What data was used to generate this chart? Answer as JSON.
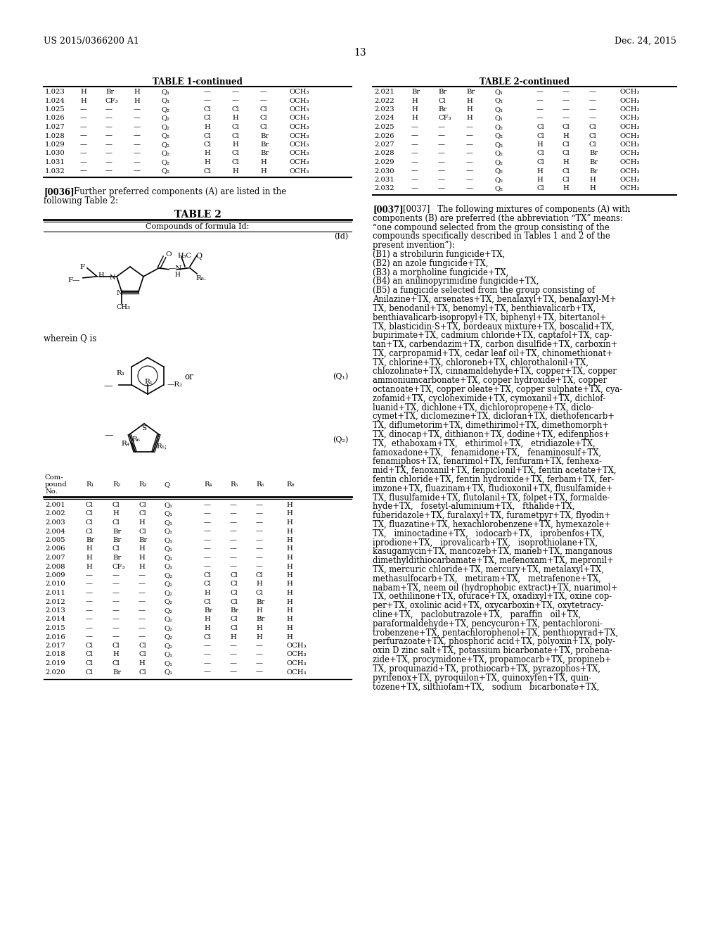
{
  "bg_color": "#ffffff",
  "header_left": "US 2015/0366200 A1",
  "header_right": "Dec. 24, 2015",
  "page_number": "13",
  "table1_title": "TABLE 1-continued",
  "table2_title": "TABLE 2-continued",
  "table1_continued_rows": [
    [
      "1.023",
      "H",
      "Br",
      "H",
      "Q₁",
      "—",
      "—",
      "—",
      "OCH₃"
    ],
    [
      "1.024",
      "H",
      "CF₃",
      "H",
      "Q₁",
      "—",
      "—",
      "—",
      "OCH₃"
    ],
    [
      "1.025",
      "—",
      "—",
      "—",
      "Q₂",
      "Cl",
      "Cl",
      "Cl",
      "OCH₃"
    ],
    [
      "1.026",
      "—",
      "—",
      "—",
      "Q₂",
      "Cl",
      "H",
      "Cl",
      "OCH₃"
    ],
    [
      "1.027",
      "—",
      "—",
      "—",
      "Q₂",
      "H",
      "Cl",
      "Cl",
      "OCH₃"
    ],
    [
      "1.028",
      "—",
      "—",
      "—",
      "Q₂",
      "Cl",
      "Cl",
      "Br",
      "OCH₃"
    ],
    [
      "1.029",
      "—",
      "—",
      "—",
      "Q₂",
      "Cl",
      "H",
      "Br",
      "OCH₃"
    ],
    [
      "1.030",
      "—",
      "—",
      "—",
      "Q₂",
      "H",
      "Cl",
      "Br",
      "OCH₃"
    ],
    [
      "1.031",
      "—",
      "—",
      "—",
      "Q₂",
      "H",
      "Cl",
      "H",
      "OCH₃"
    ],
    [
      "1.032",
      "—",
      "—",
      "—",
      "Q₂",
      "Cl",
      "H",
      "H",
      "OCH₃"
    ]
  ],
  "table2_continued_rows": [
    [
      "2.021",
      "Br",
      "Br",
      "Br",
      "Q₁",
      "—",
      "—",
      "—",
      "OCH₃"
    ],
    [
      "2.022",
      "H",
      "Cl",
      "H",
      "Q₁",
      "—",
      "—",
      "—",
      "OCH₃"
    ],
    [
      "2.023",
      "H",
      "Br",
      "H",
      "Q₁",
      "—",
      "—",
      "—",
      "OCH₃"
    ],
    [
      "2.024",
      "H",
      "CF₃",
      "H",
      "Q₁",
      "—",
      "—",
      "—",
      "OCH₃"
    ],
    [
      "2.025",
      "—",
      "—",
      "—",
      "Q₂",
      "Cl",
      "Cl",
      "Cl",
      "OCH₃"
    ],
    [
      "2.026",
      "—",
      "—",
      "—",
      "Q₂",
      "Cl",
      "H",
      "Cl",
      "OCH₃"
    ],
    [
      "2.027",
      "—",
      "—",
      "—",
      "Q₂",
      "H",
      "Cl",
      "Cl",
      "OCH₃"
    ],
    [
      "2.028",
      "—",
      "—",
      "—",
      "Q₂",
      "Cl",
      "Cl",
      "Br",
      "OCH₃"
    ],
    [
      "2.029",
      "—",
      "—",
      "—",
      "Q₂",
      "Cl",
      "H",
      "Br",
      "OCH₃"
    ],
    [
      "2.030",
      "—",
      "—",
      "—",
      "Q₂",
      "H",
      "Cl",
      "Br",
      "OCH₃"
    ],
    [
      "2.031",
      "—",
      "—",
      "—",
      "Q₂",
      "H",
      "Cl",
      "H",
      "OCH₃"
    ],
    [
      "2.032",
      "—",
      "—",
      "—",
      "Q₂",
      "Cl",
      "H",
      "H",
      "OCH₃"
    ]
  ],
  "table2_rows": [
    [
      "2.001",
      "Cl",
      "Cl",
      "Cl",
      "Q₁",
      "—",
      "—",
      "—",
      "H"
    ],
    [
      "2.002",
      "Cl",
      "H",
      "Cl",
      "Q₁",
      "—",
      "—",
      "—",
      "H"
    ],
    [
      "2.003",
      "Cl",
      "Cl",
      "H",
      "Q₁",
      "—",
      "—",
      "—",
      "H"
    ],
    [
      "2.004",
      "Cl",
      "Br",
      "Cl",
      "Q₁",
      "—",
      "—",
      "—",
      "H"
    ],
    [
      "2.005",
      "Br",
      "Br",
      "Br",
      "Q₁",
      "—",
      "—",
      "—",
      "H"
    ],
    [
      "2.006",
      "H",
      "Cl",
      "H",
      "Q₁",
      "—",
      "—",
      "—",
      "H"
    ],
    [
      "2.007",
      "H",
      "Br",
      "H",
      "Q₁",
      "—",
      "—",
      "—",
      "H"
    ],
    [
      "2.008",
      "H",
      "CF₃",
      "H",
      "Q₁",
      "—",
      "—",
      "—",
      "H"
    ],
    [
      "2.009",
      "—",
      "—",
      "—",
      "Q₂",
      "Cl",
      "Cl",
      "Cl",
      "H"
    ],
    [
      "2.010",
      "—",
      "—",
      "—",
      "Q₂",
      "Cl",
      "Cl",
      "H",
      "H"
    ],
    [
      "2.011",
      "—",
      "—",
      "—",
      "Q₂",
      "H",
      "Cl",
      "Cl",
      "H"
    ],
    [
      "2.012",
      "—",
      "—",
      "—",
      "Q₂",
      "Cl",
      "Cl",
      "Br",
      "H"
    ],
    [
      "2.013",
      "—",
      "—",
      "—",
      "Q₂",
      "Br",
      "Br",
      "H",
      "H"
    ],
    [
      "2.014",
      "—",
      "—",
      "—",
      "Q₂",
      "H",
      "Cl",
      "Br",
      "H"
    ],
    [
      "2.015",
      "—",
      "—",
      "—",
      "Q₂",
      "H",
      "Cl",
      "H",
      "H"
    ],
    [
      "2.016",
      "—",
      "—",
      "—",
      "Q₂",
      "Cl",
      "H",
      "H",
      "H"
    ],
    [
      "2.017",
      "Cl",
      "Cl",
      "Cl",
      "Q₂",
      "—",
      "—",
      "—",
      "OCH₃"
    ],
    [
      "2.018",
      "Cl",
      "H",
      "Cl",
      "Q₁",
      "—",
      "—",
      "—",
      "OCH₃"
    ],
    [
      "2.019",
      "Cl",
      "Cl",
      "H",
      "Q₁",
      "—",
      "—",
      "—",
      "OCH₃"
    ],
    [
      "2.020",
      "Cl",
      "Br",
      "Cl",
      "Q₁",
      "—",
      "—",
      "—",
      "OCH₃"
    ]
  ],
  "right_col_lines": [
    "[0037]   The following mixtures of components (A) with",
    "components (B) are preferred (the abbreviation “TX” means:",
    "“one compound selected from the group consisting of the",
    "compounds specifically described in Tables 1 and 2 of the",
    "present invention”):",
    "(B1) a strobilurin fungicide+TX,",
    "(B2) an azole fungicide+TX,",
    "(B3) a morpholine fungicide+TX,",
    "(B4) an anilinopyrimidine fungicide+TX,",
    "(B5) a fungicide selected from the group consisting of",
    "Anilazine+TX, arsenates+TX, benalaxyl+TX, benalaxyl-M+",
    "TX, benodanil+TX, benomyl+TX, benthiavalicarb+TX,",
    "benthiavalicarb-isopropyl+TX, biphenyl+TX, bitertanol+",
    "TX, blasticidin-S+TX, bordeaux mixture+TX, boscalid+TX,",
    "bupirimate+TX, cadmium chloride+TX, captafol+TX, cap-",
    "tan+TX, carbendazim+TX, carbon disulfide+TX, carboxin+",
    "TX, carpropamid+TX, cedar leaf oil+TX, chinomethionat+",
    "TX, chlorine+TX, chloroneb+TX, chlorothalonil+TX,",
    "chlozolinate+TX, cinnamaldehyde+TX, copper+TX, copper",
    "ammoniumcarbonate+TX, copper hydroxide+TX, copper",
    "octanoate+TX, copper oleate+TX, copper sulphate+TX, cya-",
    "zofamid+TX, cycloheximide+TX, cymoxanil+TX, dichlof-",
    "luanid+TX, dichlone+TX, dichloropropene+TX, diclo-",
    "cymet+TX, diclomezine+TX, dicloran+TX, diethofencarb+",
    "TX, diflumetorim+TX, dimethirimol+TX, dimethomorph+",
    "TX, dinocap+TX, dithianon+TX, dodine+TX, edifenphos+",
    "TX,  ethaboxam+TX,   ethirimol+TX,   etridiazole+TX,",
    "famoxadone+TX,   fenamidone+TX,   fenaminosulf+TX,",
    "fenamiphos+TX, fenarimol+TX, fenfuram+TX, fenhexa-",
    "mid+TX, fenoxanil+TX, fenpiclonil+TX, fentin acetate+TX,",
    "fentin chloride+TX, fentin hydroxide+TX, ferbam+TX, fer-",
    "imzone+TX, fluazinam+TX, fludioxonil+TX, flusulfamide+",
    "TX, flusulfamide+TX, flutolanil+TX, folpet+TX, formalde-",
    "hyde+TX,   fosetyl-aluminium+TX,   fthalide+TX,",
    "fuberidazole+TX, furalaxyl+TX, furametpyr+TX, flyodin+",
    "TX, fluazatine+TX, hexachlorobenzene+TX, hymexazole+",
    "TX,   iminoctadine+TX,   iodocarb+TX,   iprobenfos+TX,",
    "iprodione+TX,   iprovalicarb+TX,   isoprothiolane+TX,",
    "kasugamycin+TX, mancozeb+TX, maneb+TX, manganous",
    "dimethyldithiocarbamate+TX, mefenoxam+TX, mepronil+",
    "TX, mercuric chloride+TX, mercury+TX, metalaxyl+TX,",
    "methasulfocarb+TX,   metiram+TX,   metrafenone+TX,",
    "nabam+TX, neem oil (hydrophobic extract)+TX, nuarimol+",
    "TX, oethilinone+TX, ofurace+TX, oxadixyl+TX, oxine cop-",
    "per+TX, oxolinic acid+TX, oxycarboxin+TX, oxytetracy-",
    "cline+TX,   paclobutrazole+TX,   paraffin   oil+TX,",
    "paraformaldehyde+TX, pencycuron+TX, pentachloroni-",
    "trobenzene+TX, pentachlorophenol+TX, penthiopyrad+TX,",
    "perfurazoate+TX, phosphoric acid+TX, polyoxin+TX, poly-",
    "oxin D zinc salt+TX, potassium bicarbonate+TX, probena-",
    "zide+TX, procymidone+TX, propamocarb+TX, propineb+",
    "TX, proquinazid+TX, prothiocarb+TX, pyrazophos+TX,",
    "pyrifenox+TX, pyroquilon+TX, quinoxyfen+TX, quin-",
    "tozene+TX, silthiofam+TX,   sodium   bicarbonate+TX,"
  ]
}
